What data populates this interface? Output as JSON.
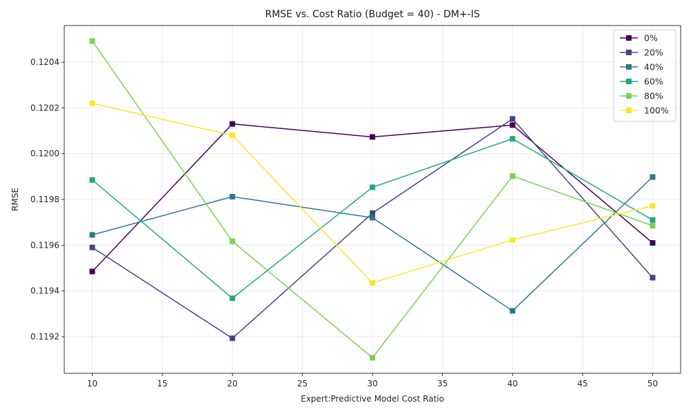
{
  "chart_data": {
    "type": "line",
    "title": "RMSE vs. Cost Ratio (Budget = 40) - DM+-IS",
    "xlabel": "Expert:Predictive Model Cost Ratio",
    "ylabel": "RMSE",
    "x": [
      10,
      20,
      30,
      40,
      50
    ],
    "xlim": [
      8,
      52
    ],
    "ylim": [
      0.11904,
      0.12056
    ],
    "xticks": [
      10,
      15,
      20,
      25,
      30,
      35,
      40,
      45,
      50
    ],
    "yticks": [
      0.1192,
      0.1194,
      0.1196,
      0.1198,
      0.12,
      0.1202,
      0.1204
    ],
    "ytick_labels": [
      "0.1192",
      "0.1194",
      "0.1196",
      "0.1198",
      "0.1200",
      "0.1202",
      "0.1204"
    ],
    "grid": true,
    "legend_position": "top-right",
    "marker": "square",
    "series": [
      {
        "name": "0%",
        "color": "#440154",
        "values": [
          0.119485,
          0.12013,
          0.120073,
          0.120125,
          0.11961
        ]
      },
      {
        "name": "20%",
        "color": "#414487",
        "values": [
          0.11959,
          0.119193,
          0.11974,
          0.120152,
          0.119458
        ]
      },
      {
        "name": "40%",
        "color": "#2a788e",
        "values": [
          0.119645,
          0.119812,
          0.11972,
          0.119313,
          0.119898
        ]
      },
      {
        "name": "60%",
        "color": "#22a884",
        "values": [
          0.119885,
          0.119368,
          0.119853,
          0.120065,
          0.11971
        ]
      },
      {
        "name": "80%",
        "color": "#7ad151",
        "values": [
          0.120492,
          0.119617,
          0.119108,
          0.119902,
          0.119685
        ]
      },
      {
        "name": "100%",
        "color": "#fde725",
        "values": [
          0.12022,
          0.12008,
          0.119435,
          0.119623,
          0.119772
        ]
      }
    ]
  }
}
